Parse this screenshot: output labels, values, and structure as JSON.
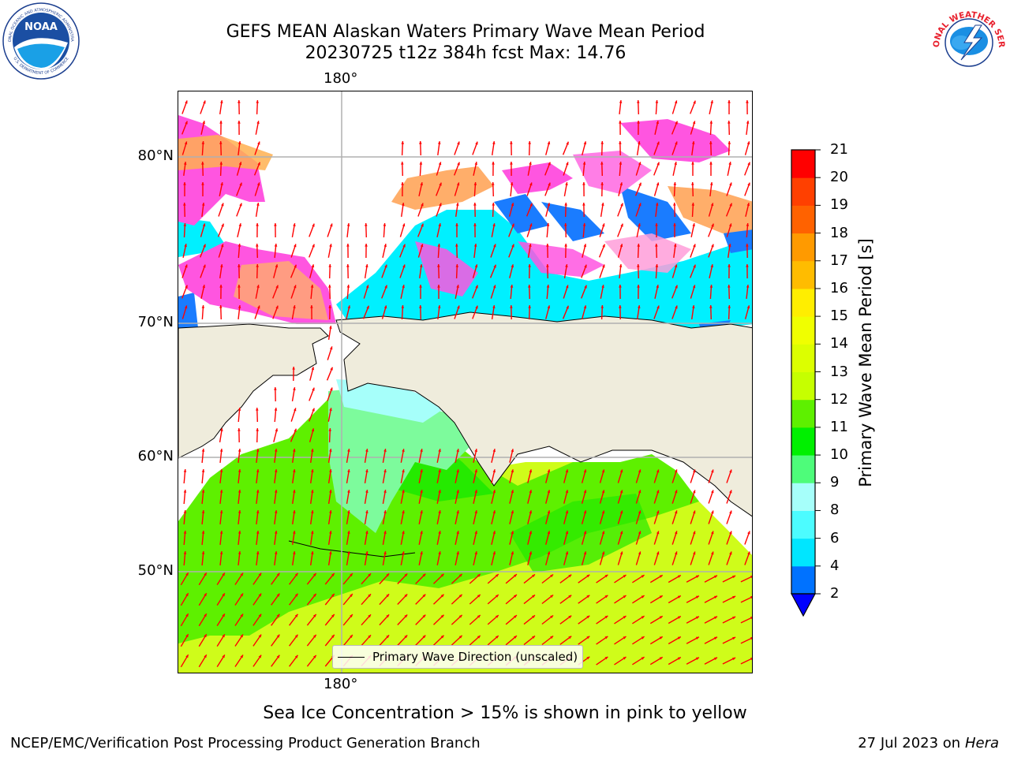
{
  "header": {
    "title_line1": "GEFS MEAN Alaskan Waters Primary Wave Mean Period",
    "title_line2": "20230725 t12z 384h fcst   Max: 14.76"
  },
  "logos": {
    "noaa": {
      "text": "NOAA",
      "ring_top": "NATIONAL OCEANIC AND ATMOSPHERIC ADMINISTRATION",
      "ring_bottom": "U.S. DEPARTMENT OF COMMERCE"
    },
    "nws": {
      "ring_text": "NATIONAL WEATHER SERVICE"
    }
  },
  "map": {
    "lon_label_top": "180°",
    "lon_label_bottom": "180°",
    "lat_labels": [
      "80°N",
      "70°N",
      "60°N",
      "50°N"
    ],
    "legend_label": "Primary Wave Direction (unscaled)",
    "land_color": "#efecdc",
    "arrow_color": "#ff0000"
  },
  "colorbar": {
    "label": "Primary Wave Mean Period [s]",
    "ticks": [
      "2",
      "4",
      "6",
      "8",
      "9",
      "10",
      "11",
      "12",
      "13",
      "14",
      "15",
      "16",
      "17",
      "18",
      "19",
      "20",
      "21"
    ],
    "colors": [
      "#0072ff",
      "#00e6ff",
      "#4cfcff",
      "#a6fffa",
      "#4efc7a",
      "#00f000",
      "#5ef000",
      "#c6ff00",
      "#dcff00",
      "#f0ff00",
      "#ffee00",
      "#ffbc00",
      "#ff9a00",
      "#ff6200",
      "#ff4000",
      "#ff0000"
    ],
    "extend_color": "#0000ff"
  },
  "caption": "Sea Ice Concentration > 15% is shown in pink to yellow",
  "footer": {
    "left": "NCEP/EMC/Verification Post Processing Product Generation Branch",
    "date": "27 Jul 2023 on ",
    "machine": "Hera"
  }
}
